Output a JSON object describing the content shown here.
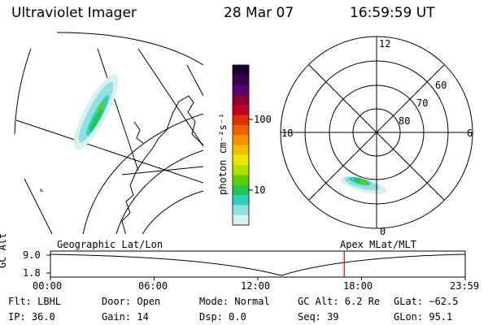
{
  "header": {
    "title": "Ultraviolet Imager",
    "date": "28 Mar 07",
    "time": "16:59:59 UT"
  },
  "colorbar": {
    "unit": "photon cm⁻²s⁻¹",
    "ticks": [
      "100",
      "10"
    ],
    "colors": [
      "#1a0030",
      "#3a0050",
      "#5a0070",
      "#900030",
      "#c00020",
      "#e03000",
      "#f06000",
      "#f39000",
      "#f0c000",
      "#e8e800",
      "#b0e000",
      "#60d000",
      "#20c850",
      "#30d0c0",
      "#90e0e0",
      "#d8f0f0"
    ]
  },
  "polar_plot": {
    "mlt_labels": [
      "12",
      "18",
      "6",
      "0"
    ],
    "lat_labels": [
      "60",
      "70",
      "80"
    ]
  },
  "timeline": {
    "y_axis_label": "GC Alt",
    "y_ticks": [
      "9.0",
      "1.8"
    ],
    "left_label": "Geographic Lat/Lon",
    "right_label": "Apex MLat/MLT",
    "x_ticks": [
      "00:00",
      "06:00",
      "12:00",
      "18:00",
      "23:59"
    ],
    "current_time_fraction": 0.7083
  },
  "status": {
    "row1": {
      "filter": "Flt: LBHL",
      "door": "Door: Open",
      "mode": "Mode: Normal",
      "gc_alt": "GC Alt: 6.2 Re",
      "glat": "GLat: −62.5"
    },
    "row2": {
      "ip": "IP: 36.0",
      "gain": "Gain: 14",
      "dsp": "Dsp:    0.0",
      "seq": "Seq: 39",
      "glon": "GLon:  95.1"
    }
  }
}
